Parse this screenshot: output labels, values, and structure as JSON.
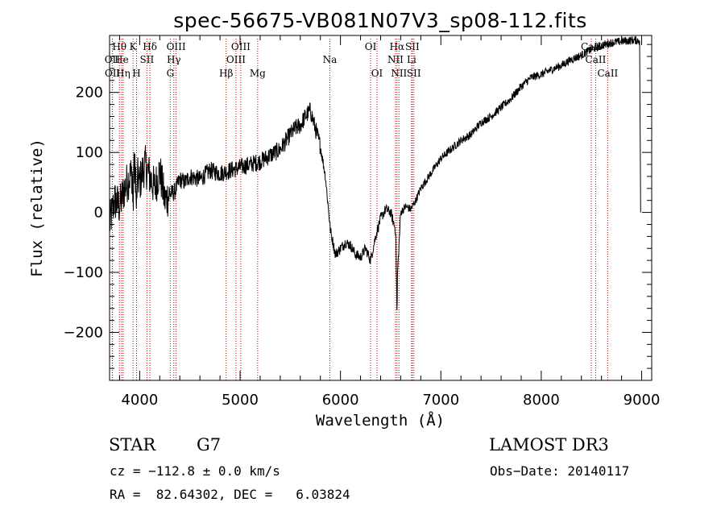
{
  "chart_data": {
    "type": "line",
    "title": "spec-56675-VB081N07V3_sp08-112.fits",
    "xlabel": "Wavelength (Å)",
    "ylabel": "Flux (relative)",
    "xlim": [
      3700,
      9100
    ],
    "ylim": [
      -280,
      295
    ],
    "xticks": [
      4000,
      5000,
      6000,
      7000,
      8000,
      9000
    ],
    "yticks": [
      -200,
      -100,
      0,
      100,
      200
    ],
    "series": [
      {
        "x": [
          3700,
          3750,
          3800,
          3850,
          3900,
          3950,
          4000,
          4050,
          4100,
          4150,
          4200,
          4250,
          4300,
          4350,
          4400,
          4450,
          4500,
          4600,
          4700,
          4800,
          4900,
          5000,
          5100,
          5200,
          5300,
          5400,
          5500,
          5550,
          5600,
          5650,
          5700,
          5750,
          5800,
          5850,
          5900,
          5950,
          6000,
          6050,
          6100,
          6150,
          6200,
          6250,
          6300,
          6350,
          6400,
          6450,
          6500,
          6550,
          6560,
          6600,
          6650,
          6700,
          6750,
          6800,
          6900,
          7000,
          7100,
          7200,
          7300,
          7400,
          7500,
          7600,
          7700,
          7800,
          7900,
          8000,
          8100,
          8200,
          8300,
          8400,
          8500,
          8600,
          8700,
          8800,
          8900,
          8980
        ],
        "y": [
          -20,
          20,
          10,
          40,
          60,
          70,
          50,
          80,
          60,
          40,
          70,
          20,
          30,
          35,
          55,
          50,
          60,
          55,
          70,
          65,
          70,
          75,
          80,
          85,
          95,
          105,
          130,
          140,
          145,
          160,
          170,
          140,
          110,
          60,
          -30,
          -70,
          -60,
          -50,
          -55,
          -70,
          -75,
          -60,
          -80,
          -40,
          -10,
          5,
          0,
          -30,
          -130,
          0,
          10,
          5,
          20,
          40,
          65,
          90,
          105,
          120,
          130,
          150,
          160,
          175,
          190,
          210,
          225,
          230,
          238,
          245,
          255,
          262,
          272,
          278,
          283,
          285,
          287,
          287
        ]
      }
    ],
    "lines": [
      {
        "label": "OII",
        "x": 3727,
        "row": 2
      },
      {
        "label": "OII",
        "x": 3729,
        "row": 3
      },
      {
        "label": "Hθ",
        "x": 3798,
        "row": 1
      },
      {
        "label": "He",
        "x": 3820,
        "row": 2
      },
      {
        "label": "Hη",
        "x": 3835,
        "row": 3
      },
      {
        "label": "K",
        "x": 3934,
        "row": 1
      },
      {
        "label": "H",
        "x": 3969,
        "row": 3
      },
      {
        "label": "SII",
        "x": 4072,
        "row": 2
      },
      {
        "label": "Hδ",
        "x": 4102,
        "row": 1
      },
      {
        "label": "OIII",
        "x": 4363,
        "row": 1
      },
      {
        "label": "Hγ",
        "x": 4340,
        "row": 2
      },
      {
        "label": "G",
        "x": 4305,
        "row": 3
      },
      {
        "label": "Hβ",
        "x": 4861,
        "row": 3
      },
      {
        "label": "OIII",
        "x": 5007,
        "row": 1
      },
      {
        "label": "OIII",
        "x": 4959,
        "row": 2
      },
      {
        "label": "Mg",
        "x": 5175,
        "row": 3
      },
      {
        "label": "Na",
        "x": 5894,
        "row": 2
      },
      {
        "label": "OI",
        "x": 6300,
        "row": 1
      },
      {
        "label": "OI",
        "x": 6364,
        "row": 3
      },
      {
        "label": "Hα",
        "x": 6563,
        "row": 1
      },
      {
        "label": "NII",
        "x": 6548,
        "row": 2
      },
      {
        "label": "NII",
        "x": 6583,
        "row": 3
      },
      {
        "label": "SII",
        "x": 6716,
        "row": 1
      },
      {
        "label": "Li",
        "x": 6708,
        "row": 2
      },
      {
        "label": "SII",
        "x": 6731,
        "row": 3
      },
      {
        "label": "CaII",
        "x": 8498,
        "row": 1
      },
      {
        "label": "CaII",
        "x": 8542,
        "row": 2
      },
      {
        "label": "CaII",
        "x": 8662,
        "row": 3
      }
    ]
  },
  "info": {
    "class": "STAR",
    "subclass": "G7",
    "survey": "LAMOST DR3",
    "cz": "cz = −112.8 ± 0.0 km/s",
    "obs_date": "Obs−Date: 20140117",
    "radec": "RA =  82.64302, DEC =   6.03824"
  }
}
